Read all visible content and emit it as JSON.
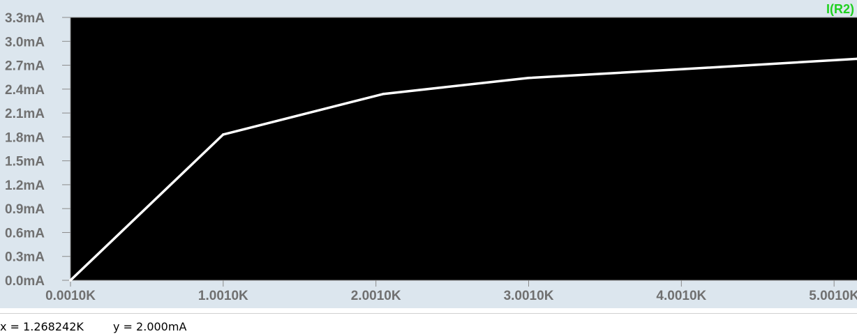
{
  "chart_data": {
    "type": "line",
    "title": "",
    "xlabel": "",
    "ylabel": "",
    "xlim": [
      0.001,
      5.151
    ],
    "ylim": [
      0,
      3.3
    ],
    "x_ticks": [
      {
        "value": 0.001,
        "label": "0.0010K"
      },
      {
        "value": 1.001,
        "label": "1.0010K"
      },
      {
        "value": 2.001,
        "label": "2.0010K"
      },
      {
        "value": 3.001,
        "label": "3.0010K"
      },
      {
        "value": 4.001,
        "label": "4.0010K"
      },
      {
        "value": 5.001,
        "label": "5.0010K"
      }
    ],
    "y_ticks": [
      {
        "value": 0.0,
        "label": "0.0mA"
      },
      {
        "value": 0.3,
        "label": "0.3mA"
      },
      {
        "value": 0.6,
        "label": "0.6mA"
      },
      {
        "value": 0.9,
        "label": "0.9mA"
      },
      {
        "value": 1.2,
        "label": "1.2mA"
      },
      {
        "value": 1.5,
        "label": "1.5mA"
      },
      {
        "value": 1.8,
        "label": "1.8mA"
      },
      {
        "value": 2.1,
        "label": "2.1mA"
      },
      {
        "value": 2.4,
        "label": "2.4mA"
      },
      {
        "value": 2.7,
        "label": "2.7mA"
      },
      {
        "value": 3.0,
        "label": "3.0mA"
      },
      {
        "value": 3.3,
        "label": "3.3mA"
      }
    ],
    "grid": false,
    "legend_position": "top-right",
    "series": [
      {
        "name": "I(R2)",
        "color": "#ffffff",
        "label_color": "#1fd11f",
        "x": [
          0.001,
          1.001,
          2.051,
          3.001,
          4.001,
          5.151
        ],
        "y": [
          0.0,
          1.83,
          2.34,
          2.54,
          2.65,
          2.78
        ]
      }
    ]
  },
  "colors": {
    "plot_background": "#000000",
    "axis": "#8a8a8a",
    "tick_label": "#707070",
    "window_background": "#dce6ee"
  },
  "status": {
    "x_readout": "x = 1.268242K",
    "y_readout": "y = 2.000mA"
  }
}
